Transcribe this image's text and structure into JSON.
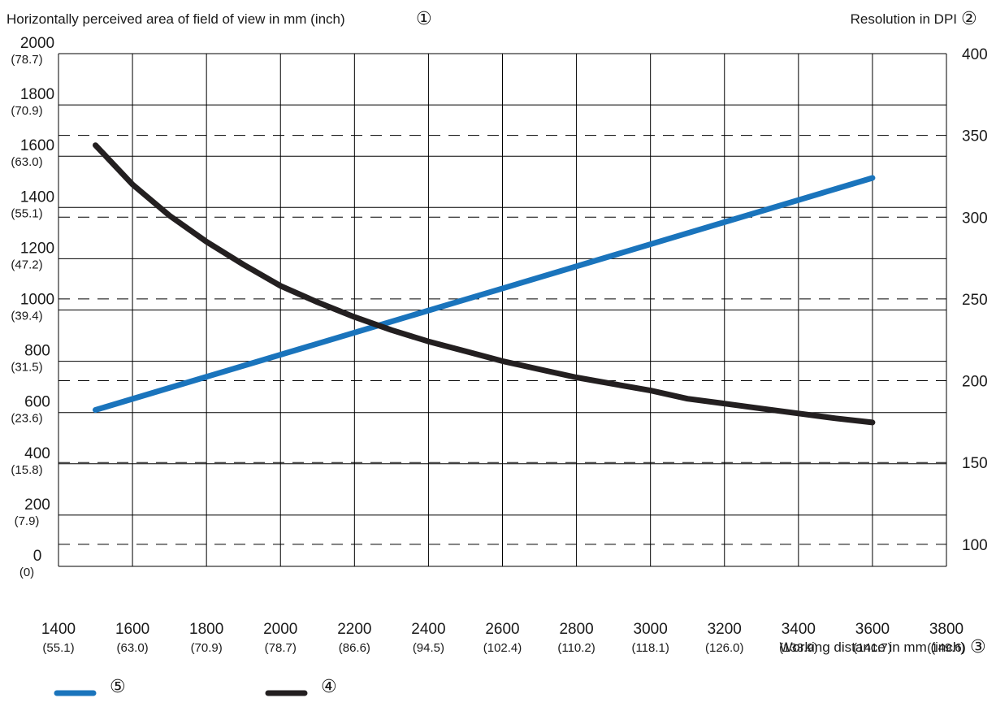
{
  "chart_data": {
    "type": "line",
    "left_axis_title": "Horizontally perceived area of field of view in mm (inch)",
    "left_axis_marker": "①",
    "right_axis_title": "Resolution in DPI",
    "right_axis_marker": "②",
    "x_axis_title": "Working distance in mm (inch)",
    "x_axis_marker": "③",
    "xlim": [
      1400,
      3800
    ],
    "ylim_left": [
      0,
      2000
    ],
    "ylim_right": [
      86.5,
      400
    ],
    "x_ticks": [
      {
        "mm": "1400",
        "inch": "(55.1)"
      },
      {
        "mm": "1600",
        "inch": "(63.0)"
      },
      {
        "mm": "1800",
        "inch": "(70.9)"
      },
      {
        "mm": "2000",
        "inch": "(78.7)"
      },
      {
        "mm": "2200",
        "inch": "(86.6)"
      },
      {
        "mm": "2400",
        "inch": "(94.5)"
      },
      {
        "mm": "2600",
        "inch": "(102.4)"
      },
      {
        "mm": "2800",
        "inch": "(110.2)"
      },
      {
        "mm": "3000",
        "inch": "(118.1)"
      },
      {
        "mm": "3200",
        "inch": "(126.0)"
      },
      {
        "mm": "3400",
        "inch": "(133.9)"
      },
      {
        "mm": "3600",
        "inch": "(141.7)"
      },
      {
        "mm": "3800",
        "inch": "(149.6)"
      }
    ],
    "y_left_ticks": [
      {
        "mm": "2000",
        "inch": "(78.7)"
      },
      {
        "mm": "1800",
        "inch": "(70.9)"
      },
      {
        "mm": "1600",
        "inch": "(63.0)"
      },
      {
        "mm": "1400",
        "inch": "(55.1)"
      },
      {
        "mm": "1200",
        "inch": "(47.2)"
      },
      {
        "mm": "1000",
        "inch": "(39.4)"
      },
      {
        "mm": "800",
        "inch": "(31.5)"
      },
      {
        "mm": "600",
        "inch": "(23.6)"
      },
      {
        "mm": "400",
        "inch": "(15.8)"
      },
      {
        "mm": "200",
        "inch": "(7.9)"
      },
      {
        "mm": "0",
        "inch": "(0)"
      }
    ],
    "y_right_ticks": [
      "400",
      "350",
      "300",
      "250",
      "200",
      "150",
      "100"
    ],
    "grid": true,
    "series": [
      {
        "legend_marker": "⑤",
        "color": "#1a74bc",
        "axis": "left",
        "x": [
          1500,
          3600
        ],
        "y": [
          610,
          1515
        ]
      },
      {
        "legend_marker": "④",
        "color": "#231f20",
        "axis": "right",
        "x": [
          1500,
          1600,
          1700,
          1800,
          1900,
          2000,
          2100,
          2200,
          2300,
          2400,
          2500,
          2600,
          2700,
          2800,
          2900,
          3000,
          3100,
          3200,
          3300,
          3400,
          3500,
          3600
        ],
        "y": [
          344,
          320,
          301,
          285,
          271,
          258,
          248,
          239,
          231,
          224,
          218,
          212,
          207,
          202,
          198,
          194,
          189,
          186,
          183,
          180,
          177,
          174.5
        ]
      }
    ]
  }
}
